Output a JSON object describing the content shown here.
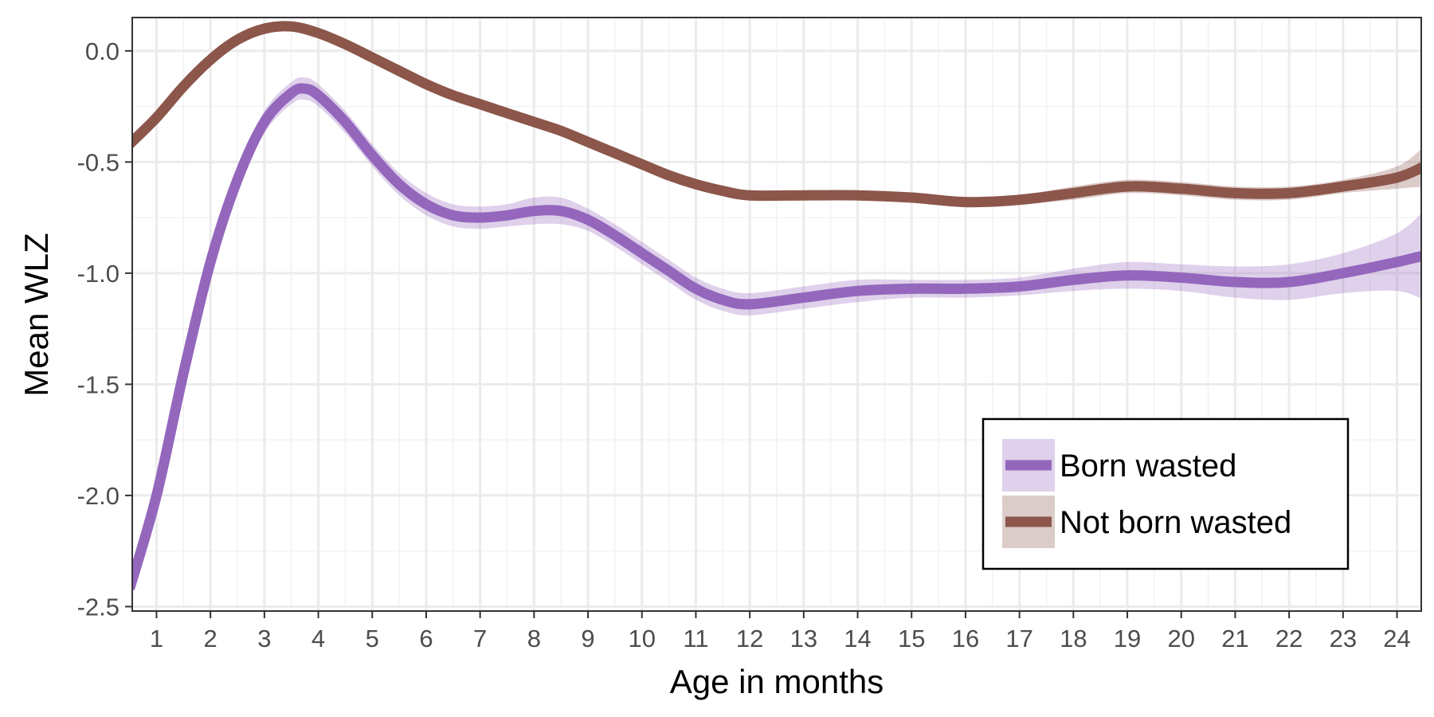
{
  "chart_data": {
    "type": "line",
    "title": "",
    "xlabel": "Age in months",
    "ylabel": "Mean WLZ",
    "xlim": [
      0.55,
      24.45
    ],
    "ylim": [
      -2.52,
      0.15
    ],
    "grid": true,
    "x_ticks": [
      "1",
      "2",
      "3",
      "4",
      "5",
      "6",
      "7",
      "8",
      "9",
      "10",
      "11",
      "12",
      "13",
      "14",
      "15",
      "16",
      "17",
      "18",
      "19",
      "20",
      "21",
      "22",
      "23",
      "24"
    ],
    "y_ticks": [
      "0.0",
      "-0.5",
      "-1.0",
      "-1.5",
      "-2.0",
      "-2.5"
    ],
    "legend_position": "bottom-right",
    "series": [
      {
        "name": "Born wasted",
        "color": "#9467bd",
        "x": [
          0.5,
          1,
          1.5,
          2,
          2.5,
          3,
          3.5,
          3.75,
          4,
          4.5,
          5,
          5.5,
          6,
          6.5,
          7,
          7.5,
          8,
          8.5,
          9,
          9.5,
          10,
          10.5,
          11,
          11.5,
          12,
          13,
          14,
          15,
          16,
          17,
          18,
          19,
          20,
          21,
          22,
          23,
          24,
          24.5
        ],
        "y": [
          -2.42,
          -2.0,
          -1.45,
          -0.95,
          -0.58,
          -0.32,
          -0.19,
          -0.17,
          -0.2,
          -0.32,
          -0.47,
          -0.6,
          -0.69,
          -0.74,
          -0.75,
          -0.74,
          -0.72,
          -0.72,
          -0.76,
          -0.83,
          -0.91,
          -0.99,
          -1.07,
          -1.12,
          -1.14,
          -1.11,
          -1.08,
          -1.07,
          -1.07,
          -1.06,
          -1.03,
          -1.01,
          -1.02,
          -1.04,
          -1.04,
          -1.0,
          -0.95,
          -0.92
        ],
        "ci_half_width": [
          0.06,
          0.05,
          0.04,
          0.04,
          0.04,
          0.05,
          0.05,
          0.05,
          0.05,
          0.05,
          0.05,
          0.05,
          0.05,
          0.05,
          0.05,
          0.05,
          0.06,
          0.06,
          0.05,
          0.05,
          0.05,
          0.05,
          0.05,
          0.05,
          0.05,
          0.05,
          0.05,
          0.04,
          0.04,
          0.04,
          0.05,
          0.06,
          0.06,
          0.07,
          0.08,
          0.09,
          0.13,
          0.2
        ]
      },
      {
        "name": "Not born wasted",
        "color": "#8c564b",
        "x": [
          0.5,
          1,
          1.5,
          2,
          2.5,
          3,
          3.5,
          4,
          4.5,
          5,
          5.5,
          6,
          6.5,
          7,
          7.5,
          8,
          8.5,
          9,
          9.5,
          10,
          10.5,
          11,
          11.5,
          12,
          13,
          14,
          15,
          16,
          17,
          18,
          19,
          20,
          21,
          22,
          23,
          24,
          24.5
        ],
        "y": [
          -0.42,
          -0.3,
          -0.16,
          -0.04,
          0.05,
          0.1,
          0.11,
          0.08,
          0.03,
          -0.03,
          -0.09,
          -0.15,
          -0.2,
          -0.24,
          -0.28,
          -0.32,
          -0.36,
          -0.41,
          -0.46,
          -0.51,
          -0.56,
          -0.6,
          -0.63,
          -0.65,
          -0.65,
          -0.65,
          -0.66,
          -0.68,
          -0.67,
          -0.64,
          -0.61,
          -0.62,
          -0.64,
          -0.64,
          -0.61,
          -0.57,
          -0.52
        ],
        "ci_half_width": [
          0.02,
          0.02,
          0.02,
          0.02,
          0.02,
          0.02,
          0.02,
          0.02,
          0.02,
          0.02,
          0.02,
          0.02,
          0.02,
          0.02,
          0.02,
          0.02,
          0.02,
          0.02,
          0.02,
          0.02,
          0.02,
          0.02,
          0.02,
          0.02,
          0.02,
          0.02,
          0.02,
          0.02,
          0.02,
          0.03,
          0.03,
          0.03,
          0.03,
          0.03,
          0.03,
          0.05,
          0.09
        ]
      }
    ]
  }
}
